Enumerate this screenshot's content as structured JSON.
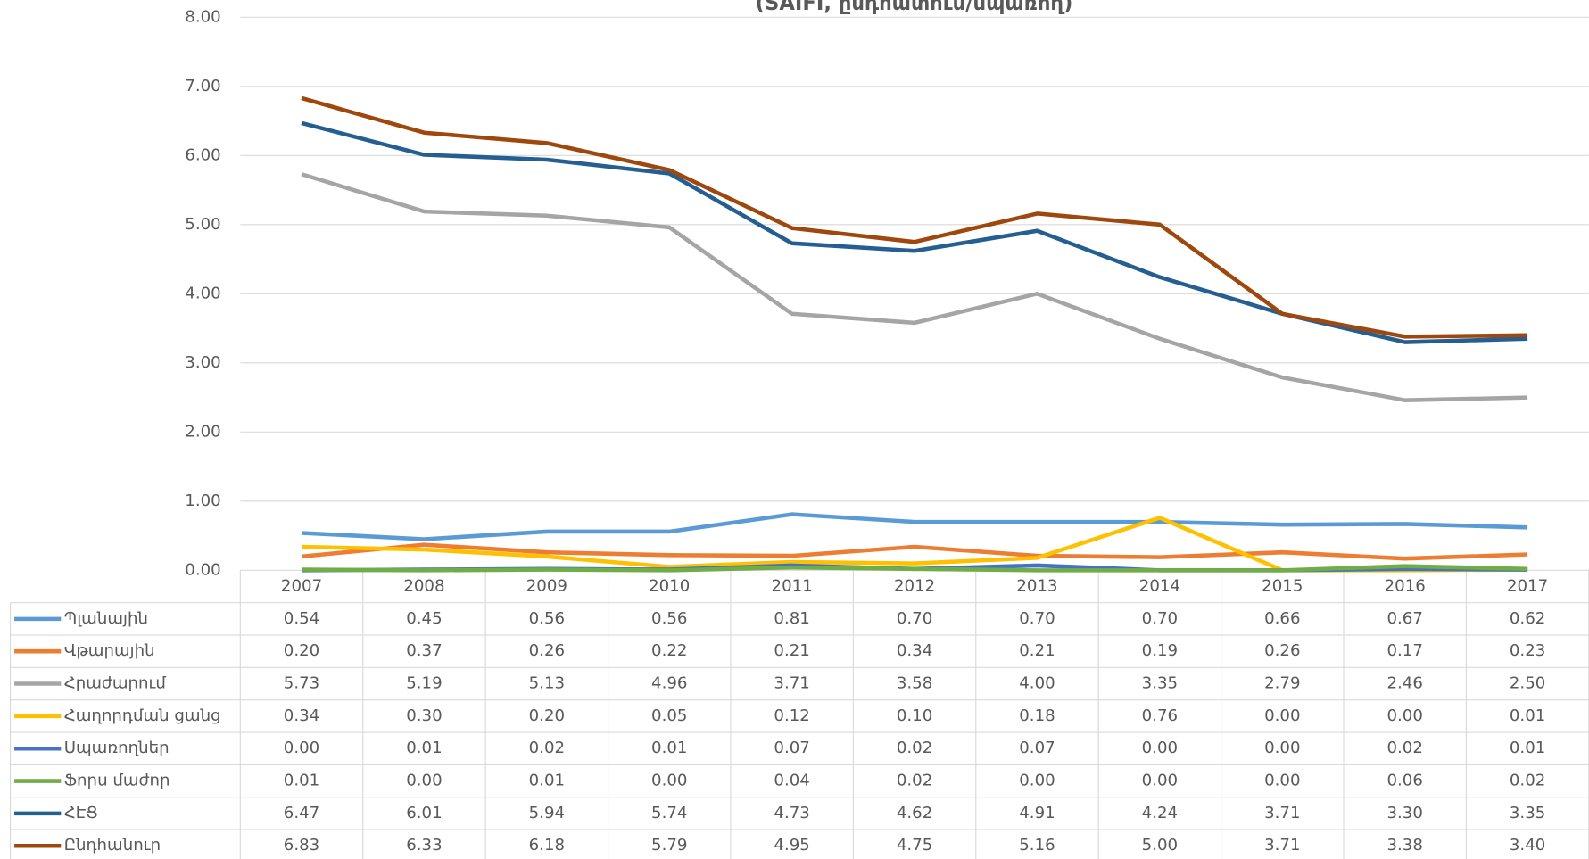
{
  "chart_data": {
    "type": "line",
    "title": "(SAIFI, ընդհատում/սպառող)",
    "categories": [
      "2007",
      "2008",
      "2009",
      "2010",
      "2011",
      "2012",
      "2013",
      "2014",
      "2015",
      "2016",
      "2017"
    ],
    "ylim": [
      0,
      8
    ],
    "yticks": [
      {
        "value": 0,
        "label": "0.00"
      },
      {
        "value": 1,
        "label": "1.00"
      },
      {
        "value": 2,
        "label": "2.00"
      },
      {
        "value": 3,
        "label": "3.00"
      },
      {
        "value": 4,
        "label": "4.00"
      },
      {
        "value": 5,
        "label": "5.00"
      },
      {
        "value": 6,
        "label": "6.00"
      },
      {
        "value": 7,
        "label": "7.00"
      },
      {
        "value": 8,
        "label": "8.00"
      }
    ],
    "grid": true,
    "series": [
      {
        "name": "Պլանային",
        "color": "#5b9bd5",
        "values": [
          0.54,
          0.45,
          0.56,
          0.56,
          0.81,
          0.7,
          0.7,
          0.7,
          0.66,
          0.67,
          0.62
        ],
        "value_labels": [
          "0.54",
          "0.45",
          "0.56",
          "0.56",
          "0.81",
          "0.70",
          "0.70",
          "0.70",
          "0.66",
          "0.67",
          "0.62"
        ]
      },
      {
        "name": "Վթարային",
        "color": "#ed7d31",
        "values": [
          0.2,
          0.37,
          0.26,
          0.22,
          0.21,
          0.34,
          0.21,
          0.19,
          0.26,
          0.17,
          0.23
        ],
        "value_labels": [
          "0.20",
          "0.37",
          "0.26",
          "0.22",
          "0.21",
          "0.34",
          "0.21",
          "0.19",
          "0.26",
          "0.17",
          "0.23"
        ]
      },
      {
        "name": "Հրաժարում",
        "color": "#a5a5a5",
        "values": [
          5.73,
          5.19,
          5.13,
          4.96,
          3.71,
          3.58,
          4,
          3.35,
          2.79,
          2.46,
          2.5
        ],
        "value_labels": [
          "5.73",
          "5.19",
          "5.13",
          "4.96",
          "3.71",
          "3.58",
          "4.00",
          "3.35",
          "2.79",
          "2.46",
          "2.50"
        ]
      },
      {
        "name": "Հաղորդման ցանց",
        "color": "#ffc000",
        "values": [
          0.34,
          0.3,
          0.2,
          0.05,
          0.12,
          0.1,
          0.18,
          0.76,
          0,
          0,
          0.01
        ],
        "value_labels": [
          "0.34",
          "0.30",
          "0.20",
          "0.05",
          "0.12",
          "0.10",
          "0.18",
          "0.76",
          "0.00",
          "0.00",
          "0.01"
        ]
      },
      {
        "name": "Սպառողներ",
        "color": "#4472c4",
        "values": [
          0,
          0.01,
          0.02,
          0.01,
          0.07,
          0.02,
          0.07,
          0,
          0,
          0.02,
          0.01
        ],
        "value_labels": [
          "0.00",
          "0.01",
          "0.02",
          "0.01",
          "0.07",
          "0.02",
          "0.07",
          "0.00",
          "0.00",
          "0.02",
          "0.01"
        ]
      },
      {
        "name": "Ֆորս մաժոր",
        "color": "#70ad47",
        "values": [
          0.01,
          0,
          0.01,
          0,
          0.04,
          0.02,
          0,
          0,
          0,
          0.06,
          0.02
        ],
        "value_labels": [
          "0.01",
          "0.00",
          "0.01",
          "0.00",
          "0.04",
          "0.02",
          "0.00",
          "0.00",
          "0.00",
          "0.06",
          "0.02"
        ]
      },
      {
        "name": "ՀԷՑ",
        "color": "#255e91",
        "values": [
          6.47,
          6.01,
          5.94,
          5.74,
          4.73,
          4.62,
          4.91,
          4.24,
          3.71,
          3.3,
          3.35
        ],
        "value_labels": [
          "6.47",
          "6.01",
          "5.94",
          "5.74",
          "4.73",
          "4.62",
          "4.91",
          "4.24",
          "3.71",
          "3.30",
          "3.35"
        ]
      },
      {
        "name": "Ընդհանուր",
        "color": "#9e480e",
        "values": [
          6.83,
          6.33,
          6.18,
          5.79,
          4.95,
          4.75,
          5.16,
          5,
          3.71,
          3.38,
          3.4
        ],
        "value_labels": [
          "6.83",
          "6.33",
          "6.18",
          "5.79",
          "4.95",
          "4.75",
          "5.16",
          "5.00",
          "3.71",
          "3.38",
          "3.40"
        ]
      }
    ]
  }
}
